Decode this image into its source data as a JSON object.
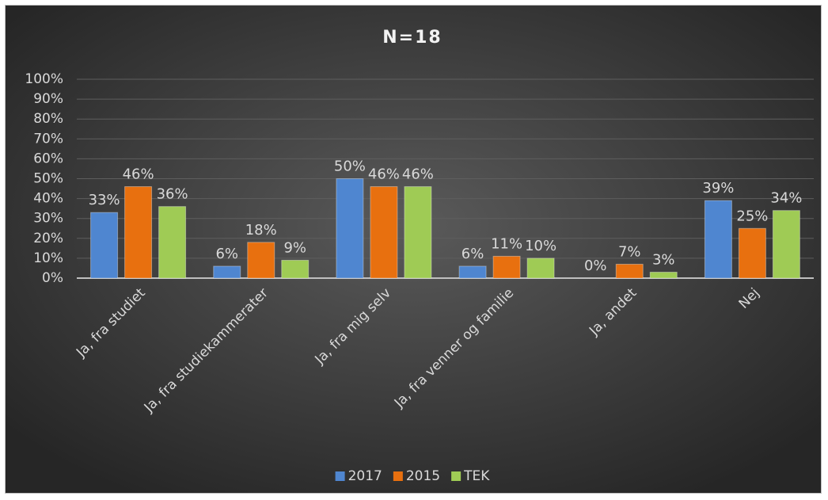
{
  "chart_data": {
    "type": "bar",
    "title": "N=18",
    "categories": [
      "Ja, fra studiet",
      "Ja, fra studiekammerater",
      "Ja, fra mig selv",
      "Ja, fra venner og familie",
      "Ja, andet",
      "Nej"
    ],
    "series": [
      {
        "name": "2017",
        "color": "#4f86d0",
        "values": [
          33,
          6,
          50,
          6,
          0,
          39
        ],
        "value_labels": [
          "33%",
          "6%",
          "50%",
          "6%",
          "0%",
          "39%"
        ]
      },
      {
        "name": "2015",
        "color": "#e8700f",
        "values": [
          46,
          18,
          46,
          11,
          7,
          25
        ],
        "value_labels": [
          "46%",
          "18%",
          "46%",
          "11%",
          "7%",
          "25%"
        ]
      },
      {
        "name": "TEK",
        "color": "#9fcb55",
        "values": [
          36,
          9,
          46,
          10,
          3,
          34
        ],
        "value_labels": [
          "36%",
          "9%",
          "46%",
          "10%",
          "3%",
          "34%"
        ]
      }
    ],
    "ylim": [
      0,
      100
    ],
    "yticks": [
      {
        "value": 0,
        "label": "0%"
      },
      {
        "value": 10,
        "label": "10%"
      },
      {
        "value": 20,
        "label": "20%"
      },
      {
        "value": 30,
        "label": "30%"
      },
      {
        "value": 40,
        "label": "40%"
      },
      {
        "value": 50,
        "label": "50%"
      },
      {
        "value": 60,
        "label": "60%"
      },
      {
        "value": 70,
        "label": "70%"
      },
      {
        "value": 80,
        "label": "80%"
      },
      {
        "value": 90,
        "label": "90%"
      },
      {
        "value": 100,
        "label": "100%"
      }
    ],
    "grid": true,
    "legend": "bottom"
  }
}
